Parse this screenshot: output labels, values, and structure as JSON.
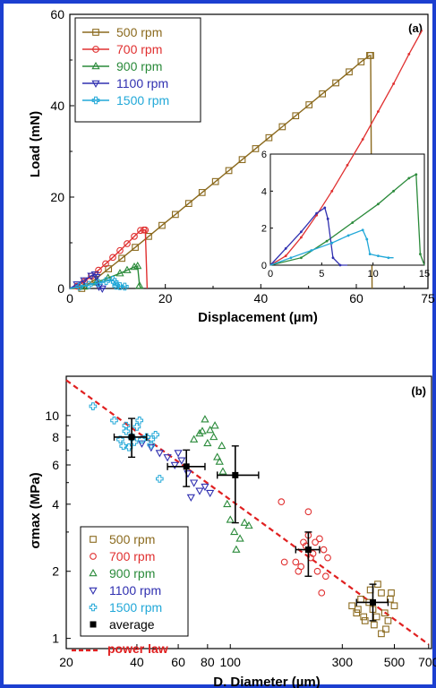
{
  "figure_colors": {
    "border": "#1c3fd0",
    "axis": "#000000",
    "power_law": "#e02020"
  },
  "chart_data": [
    {
      "type": "line",
      "panel_label": "(a)",
      "xlabel": "Displacement (µm)",
      "ylabel": "Load (mN)",
      "xlim": [
        0,
        75
      ],
      "ylim": [
        0,
        60
      ],
      "xticks": [
        0,
        20,
        40,
        60
      ],
      "xtick_labels": [
        "0",
        "20",
        "40",
        "60"
      ],
      "x_edge_label": "75",
      "yticks": [
        0,
        20,
        40,
        60
      ],
      "ytick_labels": [
        "0",
        "20",
        "40",
        "60"
      ],
      "grid": false,
      "legend_position": "top-left",
      "series": [
        {
          "name": "500 rpm",
          "color": "#8b6a1e",
          "marker": "square",
          "x": [
            0,
            2.5,
            5.3,
            8.1,
            10.9,
            13.7,
            16.5,
            19.3,
            22.1,
            24.9,
            27.7,
            30.5,
            33.3,
            36.1,
            38.9,
            41.7,
            44.5,
            47.3,
            50.1,
            52.9,
            55.7,
            58.5,
            61,
            62.8,
            63,
            63.3
          ],
          "y": [
            0,
            0,
            2,
            4.3,
            6.6,
            9,
            11.4,
            13.8,
            16.2,
            18.6,
            21,
            23.4,
            25.8,
            28.2,
            30.6,
            33,
            35.4,
            37.8,
            40.2,
            42.6,
            45,
            47.4,
            49.6,
            51,
            51,
            0
          ]
        },
        {
          "name": "700 rpm",
          "color": "#e03030",
          "marker": "circle",
          "x": [
            0,
            1.5,
            3,
            4.5,
            6,
            7.5,
            9,
            10.5,
            12,
            13.5,
            14.8,
            15.5,
            15.8,
            16.2
          ],
          "y": [
            0,
            0.5,
            1.5,
            2.7,
            4,
            5.4,
            6.8,
            8.3,
            9.8,
            11.4,
            12.7,
            12.8,
            12.8,
            0
          ]
        },
        {
          "name": "900 rpm",
          "color": "#2a8a3a",
          "marker": "triangle-up",
          "x": [
            0,
            3,
            5.5,
            8,
            10.5,
            12,
            13.5,
            14.2,
            14.6,
            15
          ],
          "y": [
            0,
            0.4,
            1.3,
            2.3,
            3.3,
            4,
            4.7,
            4.9,
            0.6,
            0
          ]
        },
        {
          "name": "1100 rpm",
          "color": "#3030b0",
          "marker": "triangle-down",
          "x": [
            0,
            1.5,
            3,
            4.5,
            5.3,
            5.6,
            6.1,
            6.8,
            7.5
          ],
          "y": [
            0,
            0.9,
            1.8,
            2.8,
            3.1,
            2.5,
            0.4,
            0,
            0
          ]
        },
        {
          "name": "1500 rpm",
          "color": "#22a8d8",
          "marker": "plus",
          "x": [
            0,
            2,
            4,
            6,
            7.6,
            9,
            9.4,
            9.7,
            10.5,
            11.5,
            12
          ],
          "y": [
            0,
            0.4,
            0.8,
            1.2,
            1.6,
            1.9,
            1.4,
            0.6,
            0.5,
            0.4,
            0.4
          ]
        }
      ],
      "inset": {
        "xlim": [
          0,
          15
        ],
        "ylim": [
          0,
          6
        ],
        "xticks": [
          0,
          5,
          10,
          15
        ],
        "xtick_labels": [
          "0",
          "5",
          "10",
          "15"
        ],
        "yticks": [
          0,
          2,
          4,
          6
        ],
        "ytick_labels": [
          "0",
          "2",
          "4",
          "6"
        ]
      }
    },
    {
      "type": "scatter",
      "panel_label": "(b)",
      "xlabel": "D. Diameter (µm)",
      "ylabel": "σmax (MPa)",
      "x_scale": "log",
      "y_scale": "log",
      "xlim": [
        20,
        720
      ],
      "ylim": [
        0.9,
        15
      ],
      "xticks": [
        20,
        40,
        60,
        80,
        100,
        300,
        500,
        700
      ],
      "xtick_labels": [
        "20",
        "40",
        "60",
        "80",
        "100",
        "300",
        "500",
        "700"
      ],
      "yticks": [
        1,
        2,
        4,
        6,
        8,
        10
      ],
      "ytick_labels": [
        "1",
        "2",
        "4",
        "6",
        "8",
        "10"
      ],
      "grid": false,
      "legend_position": "bottom-left",
      "series": [
        {
          "name": "500 rpm",
          "color": "#8b6a1e",
          "marker": "square-open",
          "x": [
            330,
            345,
            360,
            375,
            390,
            405,
            420,
            440,
            460,
            480,
            500,
            350,
            370,
            395,
            425,
            455,
            485,
            410,
            440,
            470
          ],
          "y": [
            1.4,
            1.3,
            1.5,
            1.2,
            1.45,
            1.35,
            1.25,
            1.6,
            1.1,
            1.5,
            1.4,
            1.35,
            1.25,
            1.65,
            1.75,
            1.3,
            1.6,
            1.15,
            1.05,
            1.2
          ]
        },
        {
          "name": "700 rpm",
          "color": "#e03030",
          "marker": "circle-open",
          "x": [
            190,
            200,
            210,
            215,
            220,
            230,
            235,
            240,
            250,
            255,
            260,
            245,
            225,
            205,
            195,
            170,
            165,
            215
          ],
          "y": [
            2.2,
            2.1,
            2.6,
            2.9,
            2.3,
            2.7,
            2.0,
            2.8,
            2.5,
            1.9,
            2.3,
            1.6,
            2.4,
            2.7,
            2.0,
            2.2,
            4.1,
            3.7
          ]
        },
        {
          "name": "900 rpm",
          "color": "#2a8a3a",
          "marker": "triangle-open",
          "x": [
            70,
            74,
            78,
            82,
            85,
            88,
            90,
            93,
            97,
            100,
            104,
            110,
            115,
            120,
            92,
            86,
            80,
            76,
            106
          ],
          "y": [
            7.8,
            8.3,
            9.6,
            8.6,
            8.0,
            6.5,
            6.2,
            5.6,
            4.0,
            3.4,
            3.0,
            2.8,
            3.3,
            3.2,
            7.3,
            9.0,
            7.5,
            8.5,
            2.5
          ]
        },
        {
          "name": "1100 rpm",
          "color": "#3030b0",
          "marker": "triangle-down-open",
          "x": [
            42,
            46,
            50,
            54,
            58,
            62,
            66,
            70,
            74,
            78,
            82,
            60,
            68
          ],
          "y": [
            7.5,
            7.2,
            6.8,
            6.5,
            6.0,
            6.3,
            5.5,
            5.0,
            4.6,
            4.8,
            4.5,
            6.8,
            4.3
          ]
        },
        {
          "name": "1500 rpm",
          "color": "#22a8d8",
          "marker": "plus-open",
          "x": [
            26,
            32,
            34,
            35,
            36,
            37,
            38,
            39,
            40,
            42,
            44,
            46,
            48,
            50,
            36,
            41,
            46
          ],
          "y": [
            11.0,
            9.5,
            7.8,
            7.3,
            8.5,
            7.2,
            8.0,
            7.6,
            8.9,
            7.8,
            8.0,
            7.4,
            8.2,
            5.2,
            9.0,
            9.5,
            7.8
          ]
        },
        {
          "name": "average",
          "color": "#000000",
          "marker": "square-filled",
          "x": [
            38,
            65,
            105,
            215,
            405
          ],
          "y": [
            8.0,
            5.9,
            5.4,
            2.5,
            1.45
          ],
          "x_err_low": [
            32,
            54,
            88,
            190,
            345
          ],
          "x_err_high": [
            44,
            78,
            132,
            240,
            470
          ],
          "y_err_low": [
            6.5,
            4.8,
            3.3,
            1.9,
            1.2
          ],
          "y_err_high": [
            9.7,
            7.0,
            7.3,
            3.0,
            1.75
          ]
        },
        {
          "name": "power law",
          "color": "#e02020",
          "line": "dashed",
          "x": [
            20,
            700
          ],
          "y": [
            14.4,
            0.94
          ]
        }
      ]
    }
  ]
}
